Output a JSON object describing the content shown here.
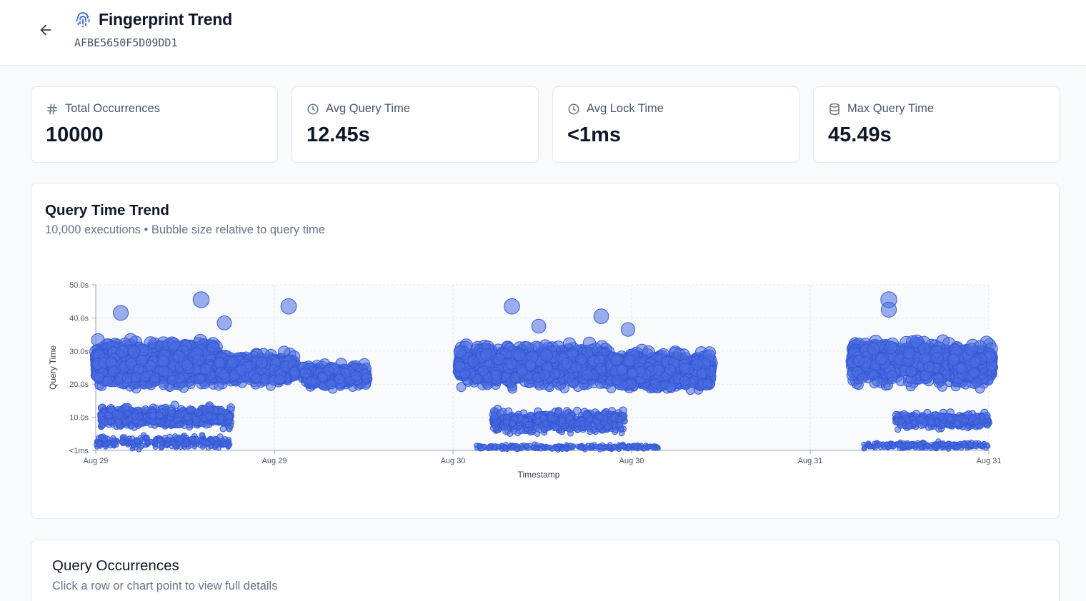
{
  "header": {
    "title": "Fingerprint Trend",
    "fingerprint_id": "AFBE5650F5D09DD1",
    "icons": {
      "back": "arrow-left-icon",
      "title": "fingerprint-icon"
    }
  },
  "stats": [
    {
      "label": "Total Occurrences",
      "value": "10000",
      "icon": "hash-icon"
    },
    {
      "label": "Avg Query Time",
      "value": "12.45s",
      "icon": "clock-icon"
    },
    {
      "label": "Avg Lock Time",
      "value": "<1ms",
      "icon": "clock-icon"
    },
    {
      "label": "Max Query Time",
      "value": "45.49s",
      "icon": "database-icon"
    }
  ],
  "chart_card": {
    "title": "Query Time Trend",
    "subtitle": "10,000 executions • Bubble size relative to query time"
  },
  "chart_data": {
    "type": "scatter",
    "xlabel": "Timestamp",
    "ylabel": "Query Time",
    "x_tick_labels": [
      "Aug 29",
      "Aug 29",
      "Aug 30",
      "Aug 30",
      "Aug 31",
      "Aug 31"
    ],
    "y_tick_labels": [
      "<1ms",
      "10.0s",
      "20.0s",
      "30.0s",
      "40.0s",
      "50.0s"
    ],
    "y_ticks": [
      0,
      10,
      20,
      30,
      40,
      50
    ],
    "xlim": [
      0,
      5
    ],
    "ylim": [
      0,
      50
    ],
    "grid": true,
    "bubble_size": "relative to query time",
    "color": "#4a6ee0",
    "series": [
      {
        "clusters": [
          {
            "x_range": [
              0.0,
              0.68
            ],
            "y_range": [
              18,
              34
            ],
            "count": 1500
          },
          {
            "x_range": [
              0.68,
              1.12
            ],
            "y_range": [
              19,
              30
            ],
            "count": 550
          },
          {
            "x_range": [
              1.16,
              1.52
            ],
            "y_range": [
              18,
              27
            ],
            "count": 300
          },
          {
            "x_range": [
              0.03,
              0.76
            ],
            "y_range": [
              6,
              14
            ],
            "count": 650
          },
          {
            "x_range": [
              0.0,
              0.75
            ],
            "y_range": [
              0,
              5
            ],
            "count": 300
          },
          {
            "x_range": [
              2.03,
              2.88
            ],
            "y_range": [
              18,
              33
            ],
            "count": 1200
          },
          {
            "x_range": [
              2.88,
              3.45
            ],
            "y_range": [
              17,
              31
            ],
            "count": 800
          },
          {
            "x_range": [
              2.22,
              2.96
            ],
            "y_range": [
              4,
              13
            ],
            "count": 500
          },
          {
            "x_range": [
              2.13,
              3.15
            ],
            "y_range": [
              0,
              2
            ],
            "count": 260
          },
          {
            "x_range": [
              4.23,
              4.8
            ],
            "y_range": [
              18,
              35
            ],
            "count": 650
          },
          {
            "x_range": [
              4.8,
              5.02
            ],
            "y_range": [
              18,
              33
            ],
            "count": 450
          },
          {
            "x_range": [
              4.48,
              5.0
            ],
            "y_range": [
              6,
              12
            ],
            "count": 300
          },
          {
            "x_range": [
              4.3,
              5.0
            ],
            "y_range": [
              0,
              3
            ],
            "count": 220
          }
        ],
        "notable_points": [
          {
            "x": 0.59,
            "y": 45.5
          },
          {
            "x": 1.08,
            "y": 43.5
          },
          {
            "x": 2.33,
            "y": 43.5
          },
          {
            "x": 2.83,
            "y": 40.5
          },
          {
            "x": 2.98,
            "y": 36.5
          },
          {
            "x": 4.44,
            "y": 45.5
          },
          {
            "x": 4.44,
            "y": 42.5
          },
          {
            "x": 0.14,
            "y": 41.5
          },
          {
            "x": 2.48,
            "y": 37.5
          },
          {
            "x": 0.72,
            "y": 38.5
          }
        ]
      }
    ]
  },
  "occurrences_card": {
    "title": "Query Occurrences",
    "subtitle": "Click a row or chart point to view full details"
  }
}
